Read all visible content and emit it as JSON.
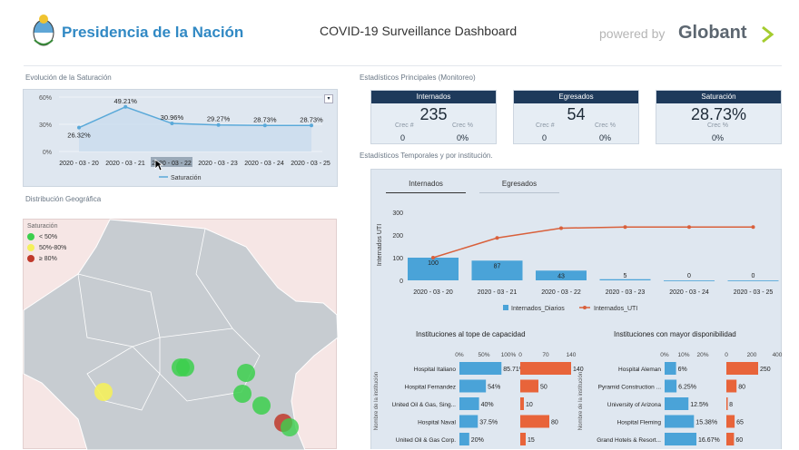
{
  "header": {
    "brand": "Presidencia de la Nación",
    "title": "COVID-19 Surveillance Dashboard",
    "powered_by": "powered by",
    "globant": "Globant"
  },
  "saturation_chart": {
    "section_title": "Evolución de la  Saturación",
    "y_ticks": [
      "60%",
      "30%",
      "0%"
    ],
    "legend": "Saturación",
    "chart_data": {
      "type": "line",
      "categories": [
        "2020 - 03 - 20",
        "2020 - 03 - 21",
        "2020 - 03 - 22",
        "2020 - 03 - 23",
        "2020 - 03 - 24",
        "2020 - 03 - 25"
      ],
      "values": [
        26.32,
        49.21,
        30.96,
        29.27,
        28.73,
        28.73
      ],
      "labels": [
        "26.32%",
        "49.21%",
        "30.96%",
        "29.27%",
        "28.73%",
        "28.73%"
      ],
      "ylim": [
        0,
        60
      ]
    }
  },
  "stats": {
    "section_title": "Estadísticos Principales (Monitoreo)",
    "internados": {
      "head": "Internados",
      "value": "235",
      "crec_num_label": "Crec #",
      "crec_pct_label": "Crec %",
      "crec_num": "0",
      "crec_pct": "0%"
    },
    "egresados": {
      "head": "Egresados",
      "value": "54",
      "crec_num_label": "Crec #",
      "crec_pct_label": "Crec %",
      "crec_num": "0",
      "crec_pct": "0%"
    },
    "saturacion": {
      "head": "Saturación",
      "value": "28.73%",
      "crec_pct_label": "Crec %",
      "crec_pct": "0%"
    }
  },
  "temporal": {
    "section_title": "Estadísticos Temporales y por institución.",
    "tab_internados": "Internados",
    "tab_egresados": "Egresados",
    "ylabel": "Internados UTI",
    "y_ticks": [
      "300",
      "200",
      "100",
      "0"
    ],
    "legend_bar": "Internados_Diarios",
    "legend_line": "Internados_UTI",
    "chart_data": {
      "type": "bar",
      "categories": [
        "2020 - 03 - 20",
        "2020 - 03 - 21",
        "2020 - 03 - 22",
        "2020 - 03 - 23",
        "2020 - 03 - 24",
        "2020 - 03 - 25"
      ],
      "series": [
        {
          "name": "Internados_Diarios",
          "values": [
            100,
            87,
            43,
            5,
            0,
            0
          ]
        },
        {
          "name": "Internados_UTI",
          "values": [
            100,
            187,
            230,
            235,
            235,
            235
          ]
        }
      ],
      "ylim": [
        0,
        300
      ]
    }
  },
  "geo": {
    "section_title": "Distribución Geográfica",
    "legend_title": "Saturación",
    "legend": [
      {
        "label": "< 50%",
        "color": "#3ccf4e"
      },
      {
        "label": "50%-80%",
        "color": "#f4f05b"
      },
      {
        "label": "≥ 80%",
        "color": "#c0392b"
      }
    ]
  },
  "tope": {
    "title": "Instituciones al tope de capacidad",
    "ylabel": "Nombre de la institución",
    "pct_ticks": [
      "0%",
      "50%",
      "100%"
    ],
    "num_ticks": [
      "0",
      "70",
      "140"
    ],
    "rows": [
      {
        "name": "Hospital Italiano",
        "pct": 85.71,
        "pct_label": "85.71%",
        "num": 140,
        "num_label": "140"
      },
      {
        "name": "Hospital Fernandez",
        "pct": 54,
        "pct_label": "54%",
        "num": 50,
        "num_label": "50"
      },
      {
        "name": "United Oil & Gas, Sing...",
        "pct": 40,
        "pct_label": "40%",
        "num": 10,
        "num_label": "10"
      },
      {
        "name": "Hospital Naval",
        "pct": 37.5,
        "pct_label": "37.5%",
        "num": 80,
        "num_label": "80"
      },
      {
        "name": "United Oil & Gas Corp.",
        "pct": 20,
        "pct_label": "20%",
        "num": 15,
        "num_label": "15"
      }
    ]
  },
  "disponibilidad": {
    "title": "Instituciones con mayor disponibilidad",
    "ylabel": "Nombre de la institución",
    "pct_ticks": [
      "0%",
      "10%",
      "20%"
    ],
    "num_ticks": [
      "0",
      "200",
      "400"
    ],
    "rows": [
      {
        "name": "Hospital Aleman",
        "pct": 6,
        "pct_label": "6%",
        "num": 250,
        "num_label": "250"
      },
      {
        "name": "Pyramid Construction ...",
        "pct": 6.25,
        "pct_label": "6.25%",
        "num": 80,
        "num_label": "80"
      },
      {
        "name": "University of Arizona",
        "pct": 12.5,
        "pct_label": "12.5%",
        "num": 8,
        "num_label": "8"
      },
      {
        "name": "Hospital Fleming",
        "pct": 15.38,
        "pct_label": "15.38%",
        "num": 65,
        "num_label": "65"
      },
      {
        "name": "Grand Hotels & Resort...",
        "pct": 16.67,
        "pct_label": "16.67%",
        "num": 60,
        "num_label": "60"
      }
    ]
  },
  "colors": {
    "navy": "#1e3a5b",
    "bar_blue": "#4aa3d8",
    "line_orange": "#d9603b",
    "bar_orange": "#e8643a"
  }
}
